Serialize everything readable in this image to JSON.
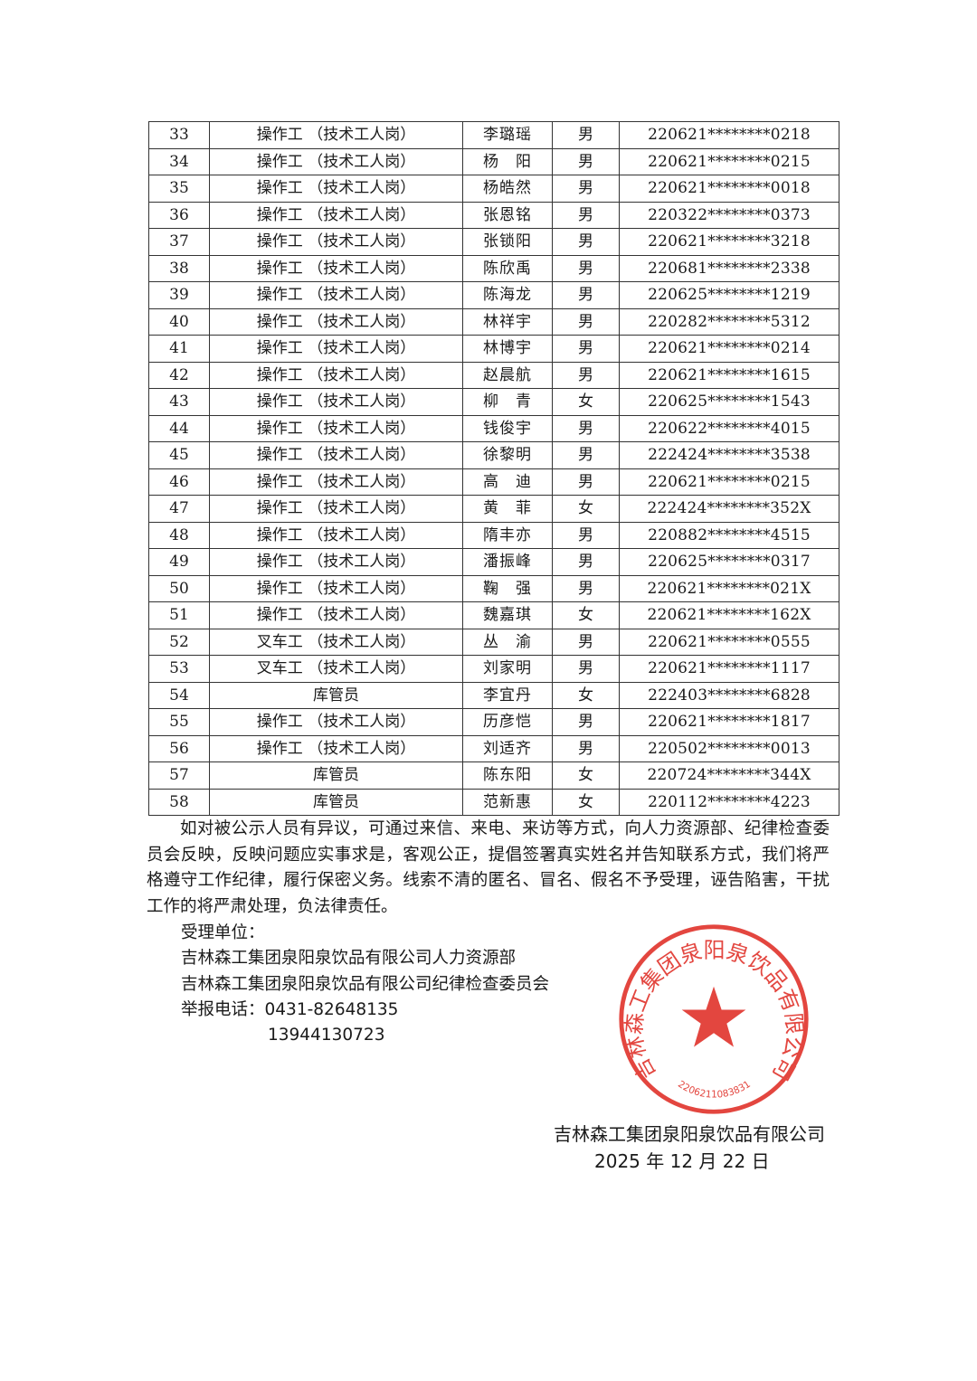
{
  "table": {
    "rows": [
      {
        "no": "33",
        "job": "操作工 （技术工人岗）",
        "name": "李璐瑶",
        "sex": "男",
        "id": "220621********0218"
      },
      {
        "no": "34",
        "job": "操作工 （技术工人岗）",
        "name": "杨　阳",
        "sex": "男",
        "id": "220621********0215"
      },
      {
        "no": "35",
        "job": "操作工 （技术工人岗）",
        "name": "杨皓然",
        "sex": "男",
        "id": "220621********0018"
      },
      {
        "no": "36",
        "job": "操作工 （技术工人岗）",
        "name": "张恩铭",
        "sex": "男",
        "id": "220322********0373"
      },
      {
        "no": "37",
        "job": "操作工 （技术工人岗）",
        "name": "张锁阳",
        "sex": "男",
        "id": "220621********3218"
      },
      {
        "no": "38",
        "job": "操作工 （技术工人岗）",
        "name": "陈欣禹",
        "sex": "男",
        "id": "220681********2338"
      },
      {
        "no": "39",
        "job": "操作工 （技术工人岗）",
        "name": "陈海龙",
        "sex": "男",
        "id": "220625********1219"
      },
      {
        "no": "40",
        "job": "操作工 （技术工人岗）",
        "name": "林祥宇",
        "sex": "男",
        "id": "220282********5312"
      },
      {
        "no": "41",
        "job": "操作工 （技术工人岗）",
        "name": "林博宇",
        "sex": "男",
        "id": "220621********0214"
      },
      {
        "no": "42",
        "job": "操作工 （技术工人岗）",
        "name": "赵晨航",
        "sex": "男",
        "id": "220621********1615"
      },
      {
        "no": "43",
        "job": "操作工 （技术工人岗）",
        "name": "柳　青",
        "sex": "女",
        "id": "220625********1543"
      },
      {
        "no": "44",
        "job": "操作工 （技术工人岗）",
        "name": "钱俊宇",
        "sex": "男",
        "id": "220622********4015"
      },
      {
        "no": "45",
        "job": "操作工 （技术工人岗）",
        "name": "徐黎明",
        "sex": "男",
        "id": "222424********3538"
      },
      {
        "no": "46",
        "job": "操作工 （技术工人岗）",
        "name": "高　迪",
        "sex": "男",
        "id": "220621********0215"
      },
      {
        "no": "47",
        "job": "操作工 （技术工人岗）",
        "name": "黄　菲",
        "sex": "女",
        "id": "222424********352X"
      },
      {
        "no": "48",
        "job": "操作工 （技术工人岗）",
        "name": "隋丰亦",
        "sex": "男",
        "id": "220882********4515"
      },
      {
        "no": "49",
        "job": "操作工 （技术工人岗）",
        "name": "潘振峰",
        "sex": "男",
        "id": "220625********0317"
      },
      {
        "no": "50",
        "job": "操作工 （技术工人岗）",
        "name": "鞠　强",
        "sex": "男",
        "id": "220621********021X"
      },
      {
        "no": "51",
        "job": "操作工 （技术工人岗）",
        "name": "魏嘉琪",
        "sex": "女",
        "id": "220621********162X"
      },
      {
        "no": "52",
        "job": "叉车工 （技术工人岗）",
        "name": "丛　渝",
        "sex": "男",
        "id": "220621********0555"
      },
      {
        "no": "53",
        "job": "叉车工 （技术工人岗）",
        "name": "刘家明",
        "sex": "男",
        "id": "220621********1117"
      },
      {
        "no": "54",
        "job": "库管员",
        "name": "李宜丹",
        "sex": "女",
        "id": "222403********6828"
      },
      {
        "no": "55",
        "job": "操作工 （技术工人岗）",
        "name": "历彦恺",
        "sex": "男",
        "id": "220621********1817"
      },
      {
        "no": "56",
        "job": "操作工 （技术工人岗）",
        "name": "刘适齐",
        "sex": "男",
        "id": "220502********0013"
      },
      {
        "no": "57",
        "job": "库管员",
        "name": "陈东阳",
        "sex": "女",
        "id": "220724********344X"
      },
      {
        "no": "58",
        "job": "库管员",
        "name": "范新惠",
        "sex": "女",
        "id": "220112********4223"
      }
    ]
  },
  "notice": {
    "paragraph": "如对被公示人员有异议，可通过来信、来电、来访等方式，向人力资源部、纪律检查委员会反映，反映问题应实事求是，客观公正，提倡签署真实姓名并告知联系方式，我们将严格遵守工作纪律，履行保密义务。线索不清的匿名、冒名、假名不予受理，诬告陷害，干扰工作的将严肃处理，负法律责任。",
    "units_label": "受理单位：",
    "unit_1": "吉林森工集团泉阳泉饮品有限公司人力资源部",
    "unit_2": "吉林森工集团泉阳泉饮品有限公司纪律检查委员会",
    "phone_label": "举报电话：",
    "phone_1": "0431-82648135",
    "phone_2": "13944130723"
  },
  "signature": {
    "company": "吉林森工集团泉阳泉饮品有限公司",
    "date": "2025 年 12 月 22 日"
  },
  "stamp": {
    "text": "吉林森工集团泉阳泉饮品有限公司",
    "code": "2206211083831",
    "color": "#e0322b"
  }
}
